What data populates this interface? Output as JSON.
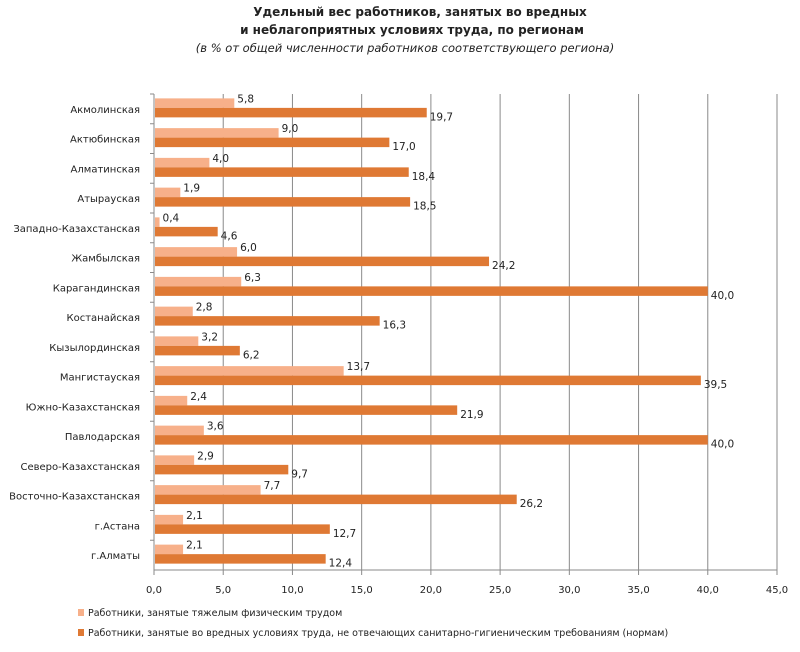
{
  "chart_data": {
    "type": "bar",
    "orientation": "horizontal",
    "title": "Удельный вес работников, занятых во вредных",
    "title_line2": "и неблагоприятных условиях труда, по регионам",
    "subtitle": "(в % от общей численности работников соответствующего  региона)",
    "categories": [
      "Акмолинская",
      "Актюбинская",
      "Алматинская",
      "Атырауская",
      "Западно-Казахстанская",
      "Жамбылская",
      "Карагандинская",
      "Костанайская",
      "Кызылординская",
      "Мангистауская",
      "Южно-Казахстанская",
      "Павлодарская",
      "Северо-Казахстанская",
      "Восточно-Казахстанская",
      "г.Астана",
      "г.Алматы"
    ],
    "series": [
      {
        "name": "Работники, занятые тяжелым физическим трудом",
        "color": "#F7B08A",
        "values": [
          5.8,
          9.0,
          4.0,
          1.9,
          0.4,
          6.0,
          6.3,
          2.8,
          3.2,
          13.7,
          2.4,
          3.6,
          2.9,
          7.7,
          2.1,
          2.1
        ],
        "labels": [
          "5,8",
          "9,0",
          "4,0",
          "1,9",
          "0,4",
          "6,0",
          "6,3",
          "2,8",
          "3,2",
          "13,7",
          "2,4",
          "3,6",
          "2,9",
          "7,7",
          "2,1",
          "2,1"
        ]
      },
      {
        "name": "Работники, занятые во вредных условиях труда, не отвечающих санитарно-гигиеническим требованиям (нормам)",
        "color": "#DF7934",
        "values": [
          19.7,
          17.0,
          18.4,
          18.5,
          4.6,
          24.2,
          40.0,
          16.3,
          6.2,
          39.5,
          21.9,
          40.0,
          9.7,
          26.2,
          12.7,
          12.4
        ],
        "labels": [
          "19,7",
          "17,0",
          "18,4",
          "18,5",
          "4,6",
          "24,2",
          "40,0",
          "16,3",
          "6,2",
          "39,5",
          "21,9",
          "40,0",
          "9,7",
          "26,2",
          "12,7",
          "12,4"
        ]
      }
    ],
    "xlim": [
      0,
      45
    ],
    "xticks": [
      "0,0",
      "5,0",
      "10,0",
      "15,0",
      "20,0",
      "25,0",
      "30,0",
      "35,0",
      "40,0",
      "45,0"
    ],
    "grid": "vertical",
    "legend": "bottom-left"
  }
}
